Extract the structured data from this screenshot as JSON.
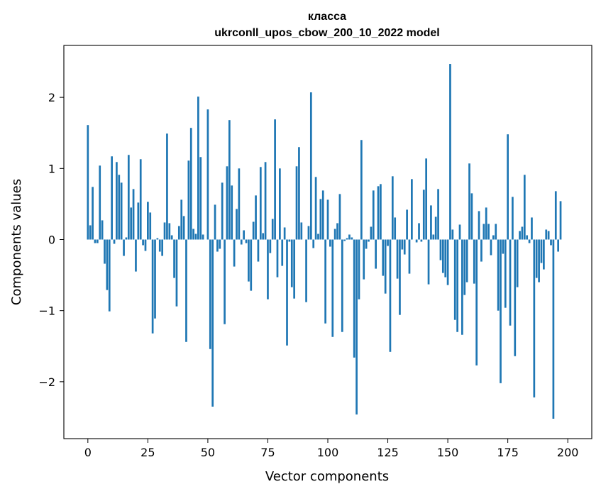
{
  "chart_data": {
    "type": "bar",
    "title": "класса",
    "subtitle": "ukrconll_upos_cbow_200_10_2022 model",
    "xlabel": "Vector components",
    "ylabel": "Components values",
    "xlim": [
      -10,
      210
    ],
    "ylim": [
      -2.8,
      2.73
    ],
    "xticks": [
      0,
      25,
      50,
      75,
      100,
      125,
      150,
      175,
      200
    ],
    "yticks": [
      -2,
      -1,
      0,
      1,
      2
    ],
    "xtick_labels": [
      "0",
      "25",
      "50",
      "75",
      "100",
      "125",
      "150",
      "175",
      "200"
    ],
    "ytick_labels": [
      "−2",
      "−1",
      "0",
      "1",
      "2"
    ],
    "bar_color": "#1f77b4",
    "grid": false,
    "legend": "none",
    "values": [
      1.61,
      0.2,
      0.74,
      -0.05,
      -0.05,
      1.04,
      0.27,
      -0.34,
      -0.71,
      -1.01,
      1.17,
      -0.06,
      1.09,
      0.91,
      0.8,
      -0.23,
      0.03,
      1.19,
      0.45,
      0.71,
      -0.45,
      0.52,
      1.13,
      -0.08,
      -0.16,
      0.53,
      0.38,
      -1.32,
      -1.11,
      0.02,
      -0.17,
      -0.23,
      0.24,
      1.49,
      0.23,
      0.06,
      -0.54,
      -0.94,
      0.19,
      0.56,
      0.33,
      -1.44,
      1.11,
      1.57,
      0.15,
      0.08,
      2.01,
      1.16,
      0.07,
      0.0,
      1.83,
      -1.54,
      -2.35,
      0.49,
      -0.17,
      -0.13,
      0.8,
      -1.19,
      1.03,
      1.68,
      0.76,
      -0.38,
      0.43,
      1.0,
      -0.07,
      0.13,
      -0.05,
      -0.59,
      -0.72,
      0.25,
      0.62,
      -0.31,
      1.02,
      0.09,
      1.09,
      -0.84,
      -0.19,
      0.29,
      1.69,
      -0.53,
      1.0,
      -0.37,
      0.17,
      -1.49,
      -0.03,
      -0.67,
      -0.83,
      1.03,
      1.3,
      0.24,
      0.0,
      -0.88,
      0.19,
      2.07,
      -0.12,
      0.88,
      0.08,
      0.57,
      0.69,
      -1.18,
      0.56,
      -0.1,
      -1.37,
      0.15,
      0.23,
      0.64,
      -1.3,
      -0.02,
      0.02,
      0.07,
      0.03,
      -1.66,
      -2.46,
      -0.84,
      1.4,
      -0.56,
      -0.13,
      -0.03,
      0.18,
      0.69,
      -0.41,
      0.75,
      0.78,
      -0.51,
      -0.76,
      -0.09,
      -1.58,
      0.89,
      0.31,
      -0.55,
      -1.06,
      -0.14,
      -0.21,
      0.42,
      -0.48,
      0.85,
      0.0,
      -0.04,
      0.23,
      -0.03,
      0.7,
      1.14,
      -0.63,
      0.48,
      0.07,
      0.32,
      0.71,
      -0.29,
      -0.47,
      -0.53,
      -0.64,
      2.47,
      0.14,
      -1.13,
      -1.3,
      0.21,
      -1.34,
      -0.78,
      -0.6,
      1.07,
      0.65,
      -0.62,
      -1.77,
      0.4,
      -0.31,
      0.22,
      0.45,
      0.22,
      -0.22,
      0.06,
      0.22,
      -1.0,
      -2.02,
      -0.2,
      -0.96,
      1.48,
      -1.21,
      0.6,
      -1.64,
      -0.67,
      0.12,
      0.18,
      0.91,
      0.06,
      -0.05,
      0.31,
      -2.22,
      -0.54,
      -0.6,
      -0.33,
      -0.42,
      0.14,
      0.12,
      -0.08,
      -2.52,
      0.68,
      -0.17,
      0.54
    ]
  }
}
